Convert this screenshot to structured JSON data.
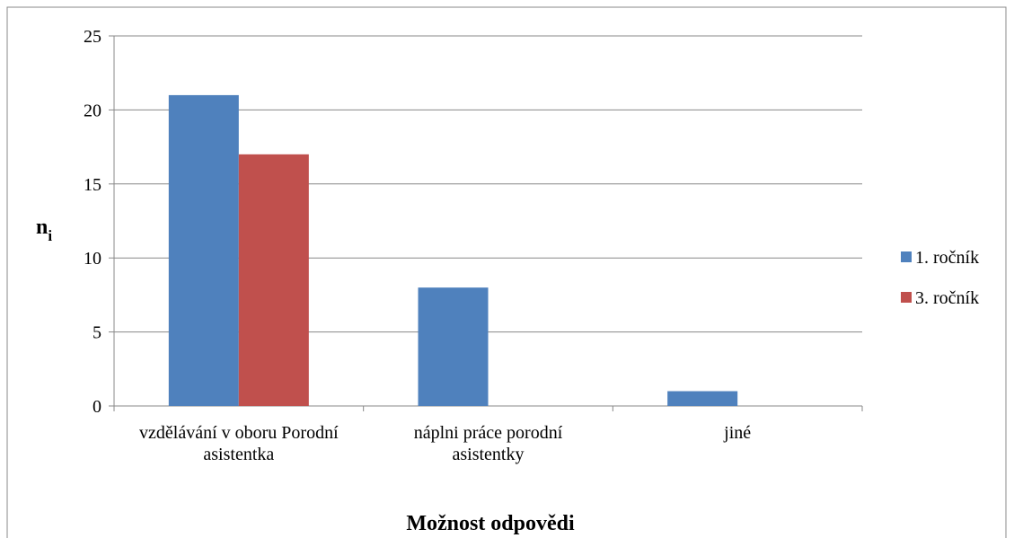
{
  "chart_data": {
    "type": "bar",
    "xlabel": "Možnost odpovědi",
    "ylabel": {
      "text": "n",
      "subscript": "i"
    },
    "categories": [
      "vzdělávání v oboru Porodní asistentka",
      "náplni práce porodní asistentky",
      "jiné"
    ],
    "series": [
      {
        "name": "1. ročník",
        "color": "#4f81bd",
        "values": [
          21,
          8,
          1
        ]
      },
      {
        "name": "3. ročník",
        "color": "#c0504d",
        "values": [
          17,
          0,
          0
        ]
      }
    ],
    "ylim": [
      0,
      25
    ],
    "yticks": [
      0,
      5,
      10,
      15,
      20,
      25
    ],
    "grid": true,
    "legend": "right"
  }
}
